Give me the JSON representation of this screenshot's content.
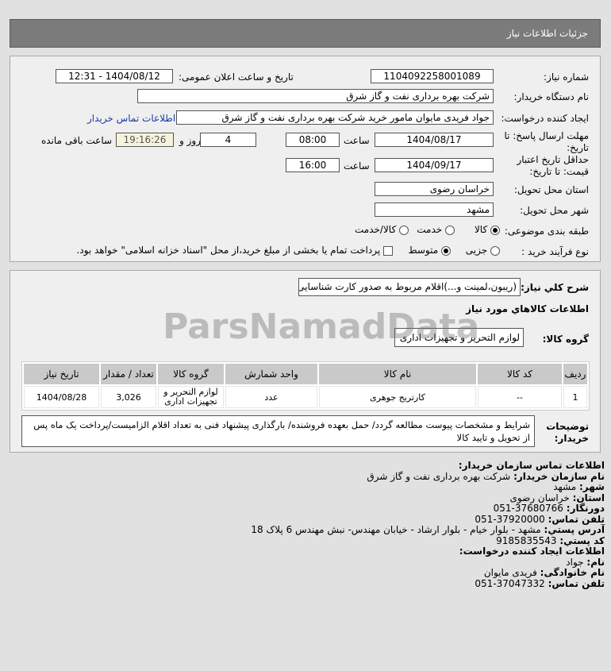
{
  "header": {
    "title": "جزئیات اطلاعات نیاز"
  },
  "form": {
    "need_number_label": "شماره نیاز:",
    "need_number": "1104092258001089",
    "announce_label": "تاریخ و ساعت اعلان عمومی:",
    "announce_value": "1404/08/12 - 12:31",
    "buyer_label": "نام دستگاه خریدار:",
    "buyer_value": "شرکت بهره برداری نفت و گاز شرق",
    "creator_label": "ایجاد کننده درخواست:",
    "creator_value": "جواد فریدی مایوان مامور خرید شرکت بهره برداری نفت و گاز شرق",
    "contact_link": "اطلاعات تماس خریدار",
    "deadline_label": "مهلت ارسال پاسخ: تا تاریخ:",
    "deadline_date": "1404/08/17",
    "time_label": "ساعت",
    "deadline_time": "08:00",
    "days": "4",
    "days_label": "روز و",
    "remaining": "19:16:26",
    "remaining_label": "ساعت باقی مانده",
    "validity_label": "حداقل تاریخ اعتبار قیمت: تا تاریخ:",
    "validity_date": "1404/09/17",
    "validity_time": "16:00",
    "province_label": "استان محل تحویل:",
    "province": "خراسان رضوی",
    "city_label": "شهر محل تحویل:",
    "city": "مشهد",
    "category_label": "طبقه بندی موضوعی:",
    "category_options": [
      "کالا",
      "خدمت",
      "کالا/خدمت"
    ],
    "category_selected": "کالا",
    "process_label": "نوع فرآیند خرید :",
    "process_options": [
      "جزیی",
      "متوسط"
    ],
    "process_selected": "متوسط",
    "treasury_note": "پرداخت تمام یا بخشی از مبلغ خرید،از محل \"اسناد خزانه اسلامی\" خواهد بود."
  },
  "details": {
    "summary_label": "شرح کلي نياز:",
    "summary": "(ریبون،لمینت و...)اقلام مربوط به صدور کارت شناسایی",
    "goods_heading": "اطلاعات کالاهاي مورد نياز",
    "group_label": "گروه کالا:",
    "group": "لوازم التحریر و تجهیزات اداری",
    "table": {
      "headers": [
        "ردیف",
        "کد کالا",
        "نام کالا",
        "واحد شمارش",
        "گروه کالا",
        "تعداد / مقدار",
        "تاریخ نیاز"
      ],
      "rows": [
        [
          "1",
          "--",
          "کارتریج جوهری",
          "عدد",
          "لوازم التحریر و تجهیزات اداری",
          "3,026",
          "1404/08/28"
        ]
      ]
    },
    "notes_label": "توضیحات خریدار:",
    "notes": "شرایط و مشخصات پیوست مطالعه گردد/ حمل بعهده فروشنده/ بارگذاری پیشنهاد فنی به تعداد اقلام الزامیست/پرداخت یک ماه پس از تحویل و تایید کالا"
  },
  "contact": {
    "heading": "اطلاعات تماس سازمان خریدار:",
    "org_label": "نام سازمان خریدار:",
    "org": "شرکت بهره برداری نفت و گاز شرق",
    "city_label": "شهر:",
    "city": "مشهد",
    "province_label": "استان:",
    "province": "خراسان رضوی",
    "fax_label": "دورنگار:",
    "fax": "37680766-051",
    "phone_label": "تلفن تماس:",
    "phone": "37920000-051",
    "address_label": "آدرس پستي:",
    "address": "مشهد - بلوار خیام - بلوار ارشاد - خیابان مهندس- نبش مهندس 6 پلاک 18",
    "postal_label": "کد پستي:",
    "postal": "9185835543",
    "creator_heading": "اطلاعات ایجاد کننده درخواست:",
    "name_label": "نام:",
    "name": "جواد",
    "family_label": "نام خانوادگی:",
    "family": "فریدی مایوان",
    "creator_phone_label": "تلفن تماس:",
    "creator_phone": "37047332-051"
  },
  "watermark": "ParsNamadData"
}
